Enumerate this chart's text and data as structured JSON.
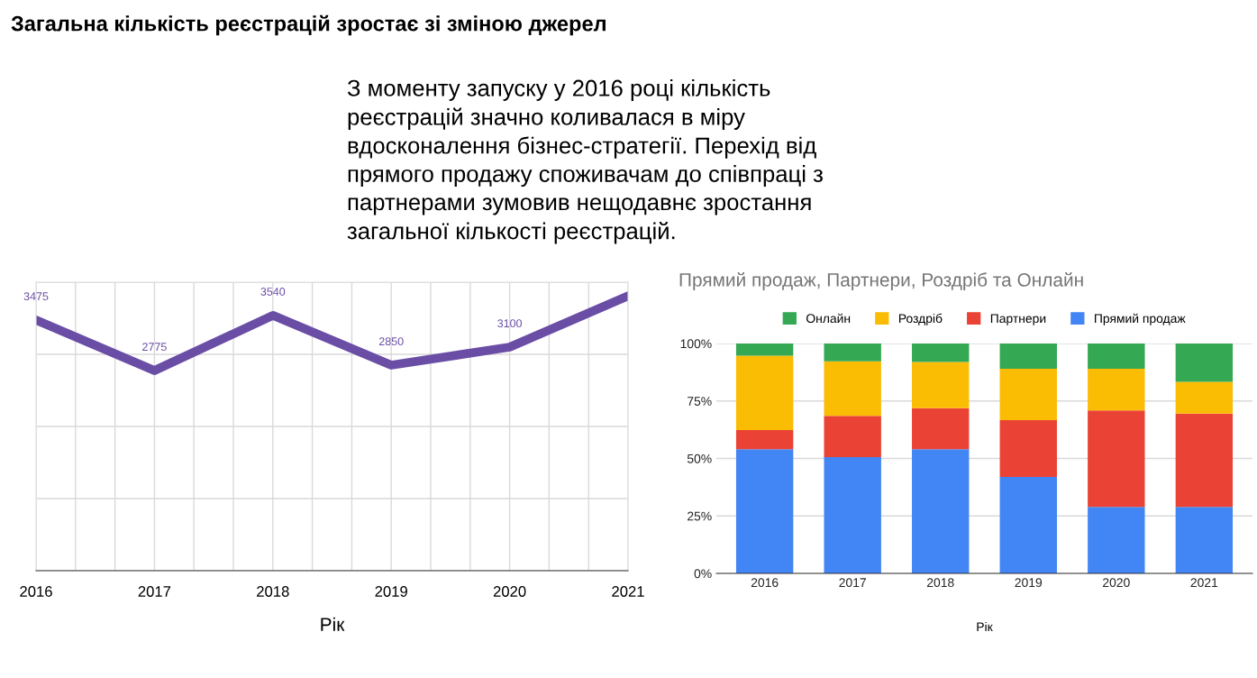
{
  "chart_data": [
    {
      "type": "other",
      "title": "Загальна кількість реєстрацій зростає зі зміною джерел",
      "annotations": [
        "З моменту запуску у 2016 році кількість\nреєстрацій значно коливалася в міру\nвдосконалення бізнес-стратегії. Перехід від\nпрямого продажу споживачам до співпраці з\nпартнерами зумовив нещодавнє зростання\nзагальної кількості реєстрацій."
      ]
    },
    {
      "type": "line",
      "xlabel": "Рік",
      "x": [
        2016,
        2017,
        2018,
        2019,
        2020,
        2021
      ],
      "series": [
        {
          "color": "#6a4ea6",
          "values": [
            3475,
            2775,
            3540,
            2850,
            3100,
            3810
          ],
          "value_labels": [
            "3475",
            "2775",
            "3540",
            "2850",
            "3100",
            null
          ]
        }
      ],
      "xlim": [
        2016,
        2021
      ],
      "xticks": [
        2016,
        {
          "value": 2016.333,
          "label": null
        },
        {
          "value": 2016.667,
          "label": null
        },
        2017,
        {
          "value": 2017.333,
          "label": null
        },
        {
          "value": 2017.667,
          "label": null
        },
        2018,
        {
          "value": 2018.333,
          "label": null
        },
        {
          "value": 2018.667,
          "label": null
        },
        2019,
        {
          "value": 2019.333,
          "label": null
        },
        {
          "value": 2019.667,
          "label": null
        },
        2020,
        {
          "value": 2020.333,
          "label": null
        },
        {
          "value": 2020.667,
          "label": null
        },
        2021
      ],
      "ylim": [
        0,
        4000
      ],
      "yticks": [
        {
          "value": 0,
          "label": null
        },
        {
          "value": 1000,
          "label": null
        },
        {
          "value": 2000,
          "label": null
        },
        {
          "value": 3000,
          "label": null
        },
        {
          "value": 4000,
          "label": null
        }
      ],
      "grid": true,
      "tick_labels": "x",
      "marker": "none",
      "line_style": "solid",
      "legend": false
    },
    {
      "type": "bar",
      "stacked": true,
      "title": "Прямий продаж, Партнери, Роздріб та Онлайн",
      "xlabel": "Рік",
      "categories": [
        "2016",
        "2017",
        "2018",
        "2019",
        "2020",
        "2021"
      ],
      "series": [
        {
          "name": "Прямий продаж",
          "color": "#4285f4",
          "values": [
            54.0,
            50.6,
            54.0,
            42.0,
            28.9,
            28.9
          ]
        },
        {
          "name": "Партнери",
          "color": "#ea4335",
          "values": [
            8.4,
            17.9,
            17.9,
            24.7,
            42.0,
            40.6
          ]
        },
        {
          "name": "Роздріб",
          "color": "#fbbc04",
          "values": [
            32.3,
            23.8,
            20.1,
            22.3,
            18.1,
            13.8
          ]
        },
        {
          "name": "Онлайн",
          "color": "#34a853",
          "values": [
            5.3,
            7.7,
            8.0,
            11.0,
            11.0,
            16.7
          ]
        }
      ],
      "ylim": [
        0,
        100
      ],
      "yticks": [
        {
          "value": 0,
          "label": "0%"
        },
        {
          "value": 25,
          "label": "25%"
        },
        {
          "value": 50,
          "label": "50%"
        },
        {
          "value": 75,
          "label": "75%"
        },
        {
          "value": 100,
          "label": "100%"
        }
      ],
      "grid": "y",
      "legend": "top"
    }
  ]
}
